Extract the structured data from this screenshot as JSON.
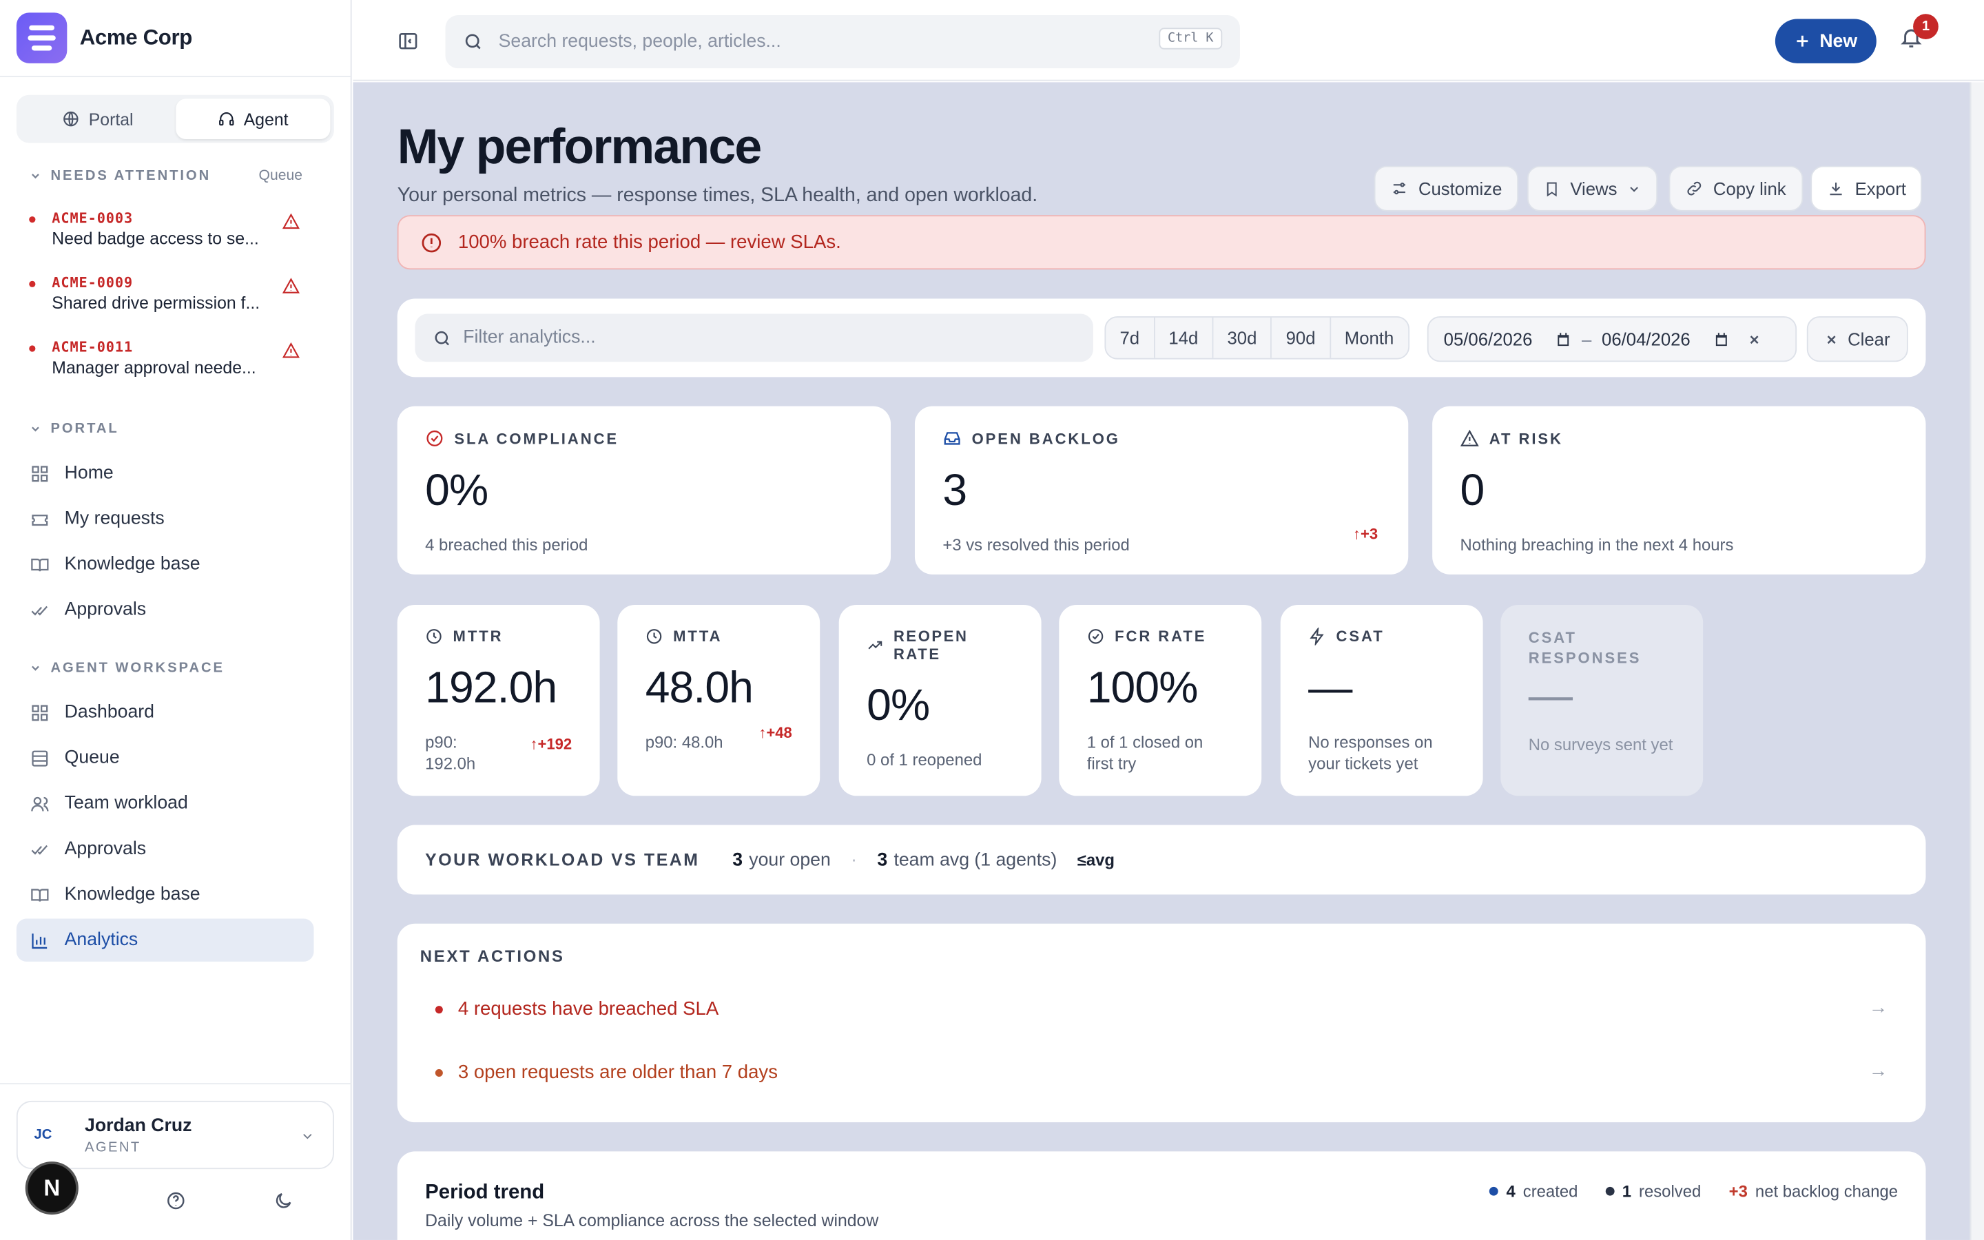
{
  "brand": {
    "name": "Acme Corp"
  },
  "mode_switch": {
    "portal": "Portal",
    "agent": "Agent"
  },
  "needs_attention": {
    "heading": "NEEDS ATTENTION",
    "link": "Queue",
    "items": [
      {
        "id": "ACME-0003",
        "title": "Need badge access to se..."
      },
      {
        "id": "ACME-0009",
        "title": "Shared drive permission f..."
      },
      {
        "id": "ACME-0011",
        "title": "Manager approval neede..."
      }
    ]
  },
  "portal_section": {
    "heading": "PORTAL",
    "items": [
      "Home",
      "My requests",
      "Knowledge base",
      "Approvals"
    ]
  },
  "agent_section": {
    "heading": "AGENT WORKSPACE",
    "items": [
      "Dashboard",
      "Queue",
      "Team workload",
      "Approvals",
      "Knowledge base",
      "Analytics"
    ]
  },
  "user": {
    "initials": "JC",
    "name": "Jordan Cruz",
    "role": "AGENT",
    "badge": "N"
  },
  "topbar": {
    "search_placeholder": "Search requests, people, articles...",
    "shortcut": "Ctrl K",
    "new_label": "New",
    "notifications": "1"
  },
  "page": {
    "title": "My performance",
    "subtitle": "Your personal metrics — response times, SLA health, and open workload.",
    "toolbar": {
      "customize": "Customize",
      "views": "Views",
      "copy_link": "Copy link",
      "export": "Export"
    },
    "alert": "100% breach rate this period — review SLAs."
  },
  "filters": {
    "placeholder": "Filter analytics...",
    "ranges": [
      "7d",
      "14d",
      "30d",
      "90d",
      "Month"
    ],
    "date_from": "05/06/2026",
    "date_sep": "–",
    "date_to": "06/04/2026",
    "clear": "Clear"
  },
  "kpis_top": [
    {
      "label": "SLA COMPLIANCE",
      "value": "0%",
      "sub": "4 breached this period",
      "delta": ""
    },
    {
      "label": "OPEN BACKLOG",
      "value": "3",
      "sub": "+3 vs resolved this period",
      "delta": "↑+3"
    },
    {
      "label": "AT RISK",
      "value": "0",
      "sub": "Nothing breaching in the next 4 hours",
      "delta": ""
    }
  ],
  "kpis_small": [
    {
      "label": "MTTR",
      "value": "192.0h",
      "sub": "p90: 192.0h",
      "delta": "↑+192"
    },
    {
      "label": "MTTA",
      "value": "48.0h",
      "sub": "p90: 48.0h",
      "delta": "↑+48"
    },
    {
      "label": "REOPEN RATE",
      "value": "0%",
      "sub": "0 of 1 reopened",
      "delta": ""
    },
    {
      "label": "FCR RATE",
      "value": "100%",
      "sub": "1 of 1 closed on first try",
      "delta": ""
    },
    {
      "label": "CSAT",
      "value": "—",
      "sub": "No responses on your tickets yet",
      "delta": ""
    },
    {
      "label": "CSAT RESPONSES",
      "value": "—",
      "sub": "No surveys sent yet",
      "delta": ""
    }
  ],
  "workload": {
    "heading": "YOUR WORKLOAD VS TEAM",
    "your_open_value": "3",
    "your_open_label": "your open",
    "sep": "·",
    "team_avg_value": "3",
    "team_avg_label": "team avg (1 agents)",
    "compare": "≤avg"
  },
  "next_actions": {
    "heading": "NEXT ACTIONS",
    "items": [
      "4 requests have breached SLA",
      "3 open requests are older than 7 days"
    ]
  },
  "trend": {
    "title": "Period trend",
    "subtitle": "Daily volume + SLA compliance across the selected window",
    "legend": [
      {
        "value": "4",
        "label": "created",
        "color": "#1d4ea6"
      },
      {
        "value": "1",
        "label": "resolved",
        "color": "#2a3345"
      },
      {
        "value": "+3",
        "label": "net backlog change",
        "color": "#c0392b"
      }
    ]
  },
  "colors": {
    "accent": "#1d4ea6",
    "danger": "#c62828",
    "main_bg": "#d6dae9"
  }
}
